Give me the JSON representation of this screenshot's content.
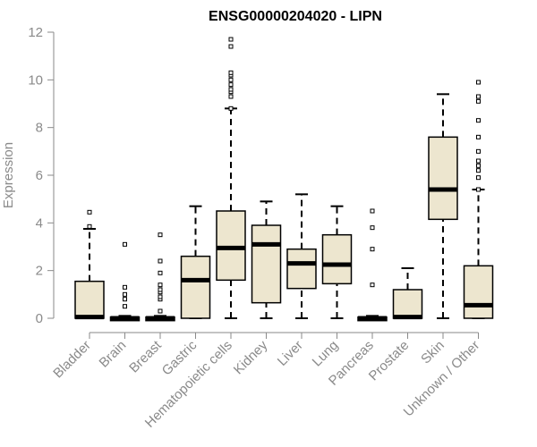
{
  "chart_data": {
    "type": "box",
    "title": "ENSG00000204020 - LIPN",
    "xlabel": "",
    "ylabel": "Expression",
    "ylim": [
      0,
      12
    ],
    "yticks": [
      0,
      2,
      4,
      6,
      8,
      10,
      12
    ],
    "grid": false,
    "legend": "none",
    "colors": {
      "box_fill": "#ede6cf",
      "box_stroke": "#000000",
      "axis_text": "#8a8a8a",
      "title": "#000000"
    },
    "categories": [
      "Bladder",
      "Brain",
      "Breast",
      "Gastric",
      "Hematopoietic cells",
      "Kidney",
      "Liver",
      "Lung",
      "Pancreas",
      "Prostate",
      "Skin",
      "Unknown / Other"
    ],
    "boxes": [
      {
        "category": "Bladder",
        "whisker_low": 0,
        "q1": 0,
        "median": 0.05,
        "q3": 1.55,
        "whisker_high": 3.75,
        "outliers": [
          3.85,
          4.45
        ]
      },
      {
        "category": "Brain",
        "whisker_low": 0,
        "q1": 0,
        "median": 0.0,
        "q3": 0.05,
        "whisker_high": 0.1,
        "outliers": [
          0.5,
          0.8,
          1.0,
          1.3,
          3.1
        ]
      },
      {
        "category": "Breast",
        "whisker_low": 0,
        "q1": 0,
        "median": 0.0,
        "q3": 0.05,
        "whisker_high": 0.1,
        "outliers": [
          0.3,
          0.8,
          0.9,
          1.1,
          1.2,
          1.4,
          1.9,
          2.4,
          3.5
        ]
      },
      {
        "category": "Gastric",
        "whisker_low": 0,
        "q1": 0,
        "median": 1.6,
        "q3": 2.6,
        "whisker_high": 4.7,
        "outliers": []
      },
      {
        "category": "Hematopoietic cells",
        "whisker_low": 0,
        "q1": 1.6,
        "median": 2.95,
        "q3": 4.5,
        "whisker_high": 8.8,
        "outliers": [
          8.8,
          9.3,
          9.5,
          9.6,
          9.8,
          10.0,
          10.2,
          10.3,
          11.4,
          11.7
        ]
      },
      {
        "category": "Kidney",
        "whisker_low": 0,
        "q1": 0.65,
        "median": 3.1,
        "q3": 3.9,
        "whisker_high": 4.9,
        "outliers": []
      },
      {
        "category": "Liver",
        "whisker_low": 0,
        "q1": 1.25,
        "median": 2.3,
        "q3": 2.9,
        "whisker_high": 5.2,
        "outliers": []
      },
      {
        "category": "Lung",
        "whisker_low": 0,
        "q1": 1.45,
        "median": 2.25,
        "q3": 3.5,
        "whisker_high": 4.7,
        "outliers": []
      },
      {
        "category": "Pancreas",
        "whisker_low": 0,
        "q1": 0,
        "median": 0.0,
        "q3": 0.05,
        "whisker_high": 0.1,
        "outliers": [
          1.4,
          2.9,
          3.8,
          4.5
        ]
      },
      {
        "category": "Prostate",
        "whisker_low": 0,
        "q1": 0,
        "median": 0.05,
        "q3": 1.2,
        "whisker_high": 2.1,
        "outliers": []
      },
      {
        "category": "Skin",
        "whisker_low": 0,
        "q1": 4.15,
        "median": 5.4,
        "q3": 7.6,
        "whisker_high": 9.4,
        "outliers": []
      },
      {
        "category": "Unknown / Other",
        "whisker_low": 0,
        "q1": 0,
        "median": 0.55,
        "q3": 2.2,
        "whisker_high": 5.4,
        "outliers": [
          5.4,
          5.9,
          6.2,
          6.4,
          6.6,
          7.0,
          7.6,
          8.3,
          9.1,
          9.3,
          9.9
        ]
      }
    ]
  }
}
